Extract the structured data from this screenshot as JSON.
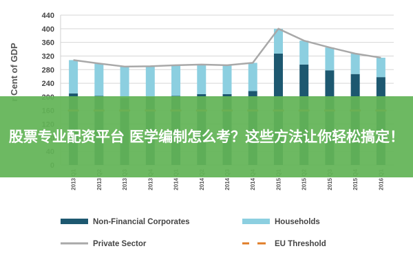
{
  "colors": {
    "non_financial": "#1d5870",
    "households": "#8ccfe0",
    "private": "#a8a8a8",
    "eu": "#e07d28",
    "banner": "#63b457"
  },
  "chart_data": {
    "type": "bar",
    "stacked": true,
    "title": "",
    "xlabel": "",
    "ylabel": "r Cent of GDP",
    "ylim": [
      0,
      440
    ],
    "yticks": [
      0,
      40,
      80,
      120,
      160,
      200,
      240,
      280,
      320,
      360,
      400,
      440
    ],
    "grid": true,
    "legend_position": "bottom",
    "categories": [
      "2013 Q1",
      "2013 Q2",
      "2013 Q3",
      "2013 Q4",
      "2014 Q1",
      "2014 Q2",
      "2014 Q3",
      "2014 Q4",
      "2015 Q1",
      "2015 Q2",
      "2015 Q3",
      "2015 Q4",
      "2016 Q1"
    ],
    "series": [
      {
        "name": "Non-Financial Corporates",
        "kind": "bar",
        "values": [
          210,
          203,
          197,
          200,
          203,
          208,
          208,
          217,
          327,
          295,
          278,
          267,
          258
        ]
      },
      {
        "name": "Households",
        "kind": "bar",
        "values": [
          98,
          95,
          92,
          90,
          90,
          87,
          85,
          83,
          73,
          70,
          67,
          60,
          57
        ]
      },
      {
        "name": "Private Sector",
        "kind": "line",
        "values": [
          308,
          298,
          289,
          290,
          293,
          295,
          293,
          300,
          400,
          365,
          345,
          327,
          315
        ]
      },
      {
        "name": "EU Threshold",
        "kind": "dashed",
        "values": [
          160,
          160,
          160,
          160,
          160,
          160,
          160,
          160,
          160,
          160,
          160,
          160,
          160
        ]
      }
    ]
  },
  "banner": {
    "text": "股票专业配资平台 医学编制怎么考？这些方法让你轻松搞定！"
  }
}
